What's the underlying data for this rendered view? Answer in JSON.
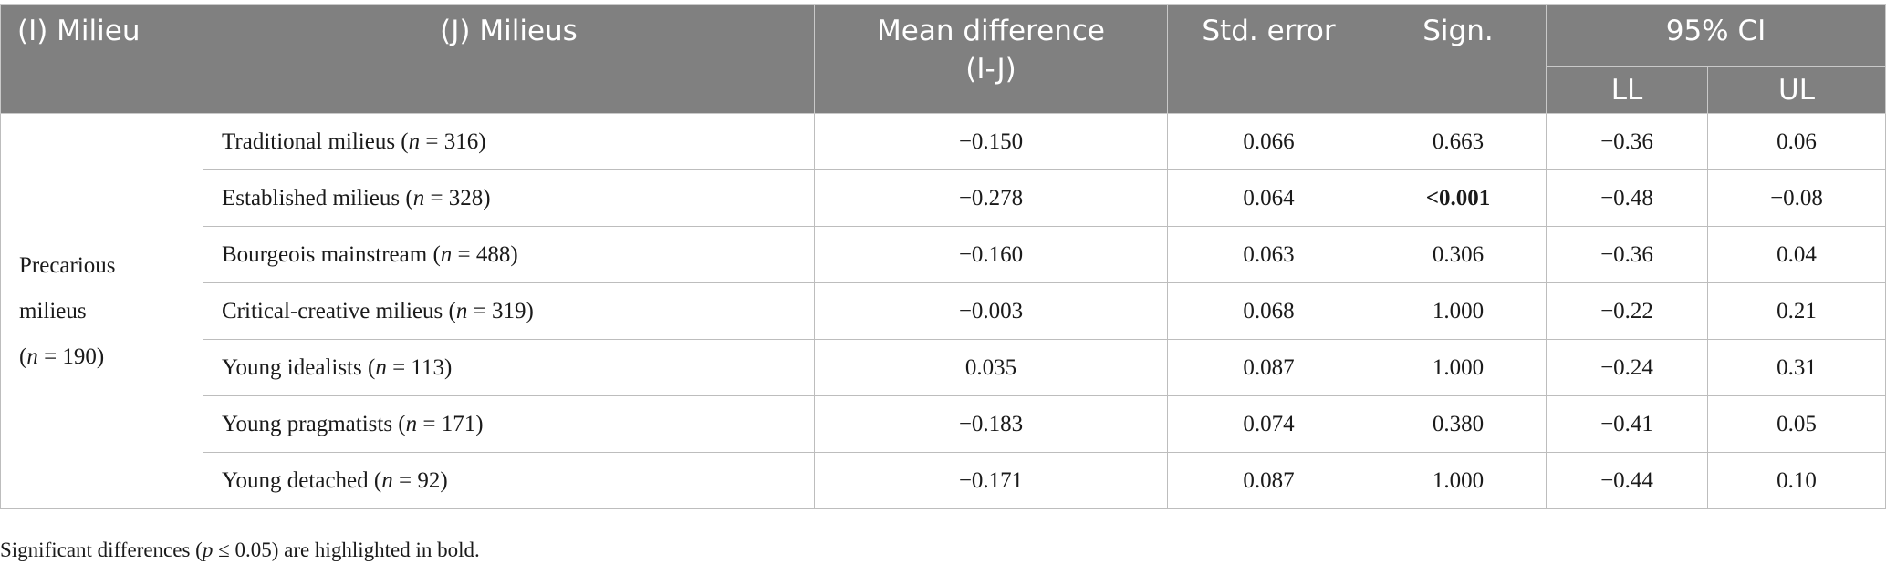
{
  "headers": {
    "milieu": "(I) Milieu",
    "milieus": "(J) Milieus",
    "mean_difference_line1": "Mean difference",
    "mean_difference_line2": "(I-J)",
    "std_error": "Std. error",
    "sign": "Sign.",
    "ci": "95% CI",
    "ll": "LL",
    "ul": "UL"
  },
  "group": {
    "line1": "Precarious",
    "line2": "milieus",
    "n_prefix": "(",
    "n_symbol": "n",
    "n_suffix": " = 190)"
  },
  "rows": [
    {
      "name": "Traditional milieus (",
      "n": "n",
      "count": " = 316)",
      "mean_diff": "−0.150",
      "std_error": "0.066",
      "sign": "0.663",
      "sign_bold": false,
      "ll": "−0.36",
      "ul": "0.06"
    },
    {
      "name": "Established milieus (",
      "n": "n",
      "count": " = 328)",
      "mean_diff": "−0.278",
      "std_error": "0.064",
      "sign": "<0.001",
      "sign_bold": true,
      "ll": "−0.48",
      "ul": "−0.08"
    },
    {
      "name": "Bourgeois mainstream (",
      "n": "n",
      "count": " = 488)",
      "mean_diff": "−0.160",
      "std_error": "0.063",
      "sign": "0.306",
      "sign_bold": false,
      "ll": "−0.36",
      "ul": "0.04"
    },
    {
      "name": "Critical-creative milieus (",
      "n": "n",
      "count": " = 319)",
      "mean_diff": "−0.003",
      "std_error": "0.068",
      "sign": "1.000",
      "sign_bold": false,
      "ll": "−0.22",
      "ul": "0.21"
    },
    {
      "name": "Young idealists (",
      "n": "n",
      "count": " = 113)",
      "mean_diff": "0.035",
      "std_error": "0.087",
      "sign": "1.000",
      "sign_bold": false,
      "ll": "−0.24",
      "ul": "0.31"
    },
    {
      "name": "Young pragmatists (",
      "n": "n",
      "count": " = 171)",
      "mean_diff": "−0.183",
      "std_error": "0.074",
      "sign": "0.380",
      "sign_bold": false,
      "ll": "−0.41",
      "ul": "0.05"
    },
    {
      "name": "Young detached (",
      "n": "n",
      "count": " = 92)",
      "mean_diff": "−0.171",
      "std_error": "0.087",
      "sign": "1.000",
      "sign_bold": false,
      "ll": "−0.44",
      "ul": "0.10"
    }
  ],
  "footnote": {
    "before": "Significant differences (",
    "p": "p",
    "after": " ≤ 0.05) are highlighted in bold."
  }
}
